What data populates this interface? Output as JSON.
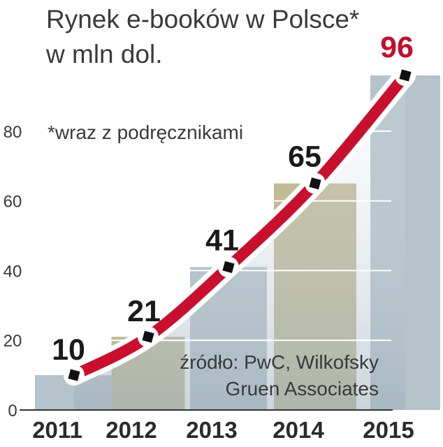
{
  "title_line1": "Rynek e-booków w Polsce*",
  "title_line2": "w mln dol.",
  "footnote": "*wraz z podręcznikami",
  "source_line1": "źródło: PwC, Wilkofsky",
  "source_line2": "Gruen Associates",
  "colors": {
    "line": "#c8102e",
    "line_outline": "#ffffff",
    "marker": "#111111",
    "band_olive": "#bdb68f",
    "band_blue": "#a8b8c2",
    "gridline": "#ffffff",
    "axis": "#333333",
    "last_label": "#c0102a"
  },
  "chart_data": {
    "type": "line",
    "title": "Rynek e-booków w Polsce* w mln dol.",
    "xlabel": "",
    "ylabel": "",
    "categories": [
      "2011",
      "2012",
      "2013",
      "2014",
      "2015"
    ],
    "values": [
      10,
      21,
      41,
      65,
      96
    ],
    "data_labels": [
      "10",
      "21",
      "41",
      "65",
      "96"
    ],
    "y_ticks": [
      "0",
      "20",
      "40",
      "60",
      "80"
    ],
    "ylim": [
      0,
      100
    ],
    "grid": true
  }
}
